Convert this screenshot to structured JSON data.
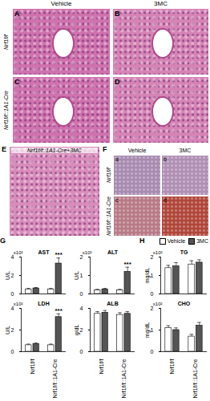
{
  "figure": {
    "columns": [
      "Vehicle",
      "3MC"
    ],
    "rows": [
      {
        "label": "Nrf1f/f",
        "panels": [
          "A",
          "B"
        ]
      },
      {
        "label": "Nrf1f/f::1A1-Cre",
        "panels": [
          "C",
          "D"
        ]
      }
    ],
    "panel_E": {
      "label": "E",
      "title": "Nrf1f/f::1A1-Cre+3MC"
    },
    "panel_F": {
      "label": "F",
      "columns": [
        "Vehicle",
        "3MC"
      ],
      "rows": [
        "Nrf1f/f",
        "Nrf1f/f::1A1-Cre"
      ],
      "cells": [
        "a",
        "b",
        "c",
        "d"
      ]
    },
    "chart_panels": [
      {
        "label": "G",
        "charts": [
          "AST",
          "ALT",
          "LDH",
          "ALB"
        ]
      },
      {
        "label": "H",
        "charts": [
          "TG",
          "CHO"
        ]
      }
    ]
  },
  "chart_data": [
    {
      "type": "bar",
      "title": "AST",
      "y_label": "U/L",
      "y_scale_label": "x10²",
      "categories": [
        "Nrf1f/f",
        "Nrf1f/f::1A1-Cre"
      ],
      "series": [
        {
          "name": "Vehicle",
          "color": "#ffffff",
          "values": [
            0.5,
            0.5
          ],
          "errors": [
            0.1,
            0.1
          ]
        },
        {
          "name": "3MC",
          "color": "#555555",
          "values": [
            0.6,
            3.3
          ],
          "errors": [
            0.1,
            0.6
          ]
        }
      ],
      "annotations": [
        {
          "category": "Nrf1f/f::1A1-Cre",
          "series": "3MC",
          "text": "***"
        }
      ],
      "ylim": [
        0,
        4
      ],
      "yticks": [
        0,
        2,
        4
      ],
      "tick_labels": "y"
    },
    {
      "type": "bar",
      "title": "ALT",
      "y_label": "U/L",
      "y_scale_label": "x10²",
      "categories": [
        "Nrf1f/f",
        "Nrf1f/f::1A1-Cre"
      ],
      "series": [
        {
          "name": "Vehicle",
          "color": "#ffffff",
          "values": [
            0.2,
            0.2
          ],
          "errors": [
            0.05,
            0.05
          ]
        },
        {
          "name": "3MC",
          "color": "#555555",
          "values": [
            0.25,
            1.2
          ],
          "errors": [
            0.05,
            0.25
          ]
        }
      ],
      "annotations": [
        {
          "category": "Nrf1f/f::1A1-Cre",
          "series": "3MC",
          "text": "***"
        }
      ],
      "ylim": [
        0,
        2
      ],
      "yticks": [
        0,
        1,
        2
      ],
      "tick_labels": "y"
    },
    {
      "type": "bar",
      "title": "LDH",
      "y_label": "U/L",
      "y_scale_label": "x10²",
      "categories": [
        "Nrf1f/f",
        "Nrf1f/f::1A1-Cre"
      ],
      "series": [
        {
          "name": "Vehicle",
          "color": "#ffffff",
          "values": [
            0.6,
            0.6
          ],
          "errors": [
            0.1,
            0.1
          ]
        },
        {
          "name": "3MC",
          "color": "#555555",
          "values": [
            0.7,
            3.2
          ],
          "errors": [
            0.1,
            0.3
          ]
        }
      ],
      "annotations": [
        {
          "category": "Nrf1f/f::1A1-Cre",
          "series": "3MC",
          "text": "***"
        }
      ],
      "ylim": [
        0,
        4
      ],
      "yticks": [
        0,
        2,
        4
      ],
      "tick_labels": true
    },
    {
      "type": "bar",
      "title": "ALB",
      "y_label": "g/dL",
      "categories": [
        "Nrf1f/f",
        "Nrf1f/f::1A1-Cre"
      ],
      "series": [
        {
          "name": "Vehicle",
          "color": "#ffffff",
          "values": [
            3.5,
            3.4
          ],
          "errors": [
            0.2,
            0.2
          ]
        },
        {
          "name": "3MC",
          "color": "#555555",
          "values": [
            3.6,
            3.5
          ],
          "errors": [
            0.2,
            0.2
          ]
        }
      ],
      "ylim": [
        0,
        4
      ],
      "yticks": [
        0,
        2,
        4
      ],
      "tick_labels": true
    },
    {
      "type": "bar",
      "title": "TG",
      "y_label": "mg/dL",
      "y_scale_label": "x10²",
      "categories": [
        "Nrf1f/f",
        "Nrf1f/f::1A1-Cre"
      ],
      "series": [
        {
          "name": "Vehicle",
          "color": "#ffffff",
          "values": [
            1.4,
            1.6
          ],
          "errors": [
            0.15,
            0.2
          ]
        },
        {
          "name": "3MC",
          "color": "#555555",
          "values": [
            1.5,
            1.7
          ],
          "errors": [
            0.2,
            0.15
          ]
        }
      ],
      "legend": "top-right",
      "ylim": [
        0,
        2
      ],
      "yticks": [
        0,
        1,
        2
      ],
      "tick_labels": "y"
    },
    {
      "type": "bar",
      "title": "CHO",
      "y_label": "mg/dL",
      "y_scale_label": "x10²",
      "categories": [
        "Nrf1f/f",
        "Nrf1f/f::1A1-Cre"
      ],
      "series": [
        {
          "name": "Vehicle",
          "color": "#ffffff",
          "values": [
            1.1,
            0.7
          ],
          "errors": [
            0.1,
            0.1
          ]
        },
        {
          "name": "3MC",
          "color": "#555555",
          "values": [
            1.0,
            1.2
          ],
          "errors": [
            0.1,
            0.15
          ]
        }
      ],
      "ylim": [
        0,
        2
      ],
      "yticks": [
        0,
        1,
        2
      ],
      "tick_labels": true
    }
  ]
}
